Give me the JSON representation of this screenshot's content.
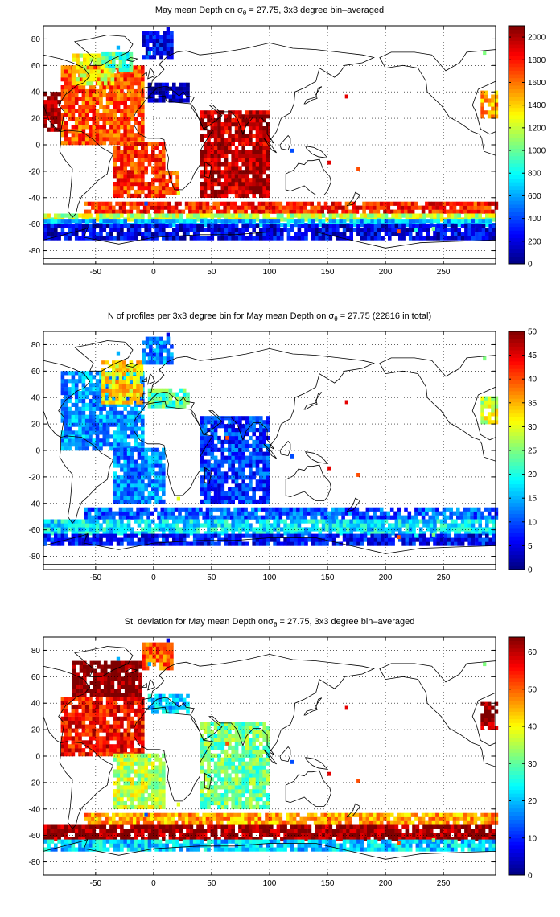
{
  "colors": {
    "land_outline": "#000000",
    "gridline": "#000000",
    "colormap": "jet",
    "colormap_stops": [
      "#00007f",
      "#0000ff",
      "#007fff",
      "#00ffff",
      "#7fff7f",
      "#ffff00",
      "#ff7f00",
      "#ff0000",
      "#7f0000"
    ]
  },
  "chart_data": [
    {
      "type": "heatmap",
      "title_parts": {
        "before": "May mean Depth on ",
        "symbol": "σ",
        "sub": "θ",
        "after": " = 27.75, 3x3 degree bin–averaged"
      },
      "xlim": [
        -95,
        295
      ],
      "ylim": [
        -90,
        90
      ],
      "xticks": [
        -50,
        0,
        50,
        100,
        150,
        200,
        250
      ],
      "yticks": [
        -80,
        -60,
        -40,
        -20,
        0,
        20,
        40,
        60,
        80
      ],
      "xtick_labels": [
        "-50",
        "0",
        "50",
        "100",
        "150",
        "200",
        "250"
      ],
      "ytick_labels": [
        "-80",
        "-60",
        "-40",
        "-20",
        "0",
        "20",
        "40",
        "60",
        "80"
      ],
      "grid": "dotted",
      "colorbar": {
        "min": 0,
        "max": 2100,
        "ticks": [
          0,
          200,
          400,
          600,
          800,
          1000,
          1200,
          1400,
          1600,
          1800,
          2000
        ],
        "tick_labels": [
          "0",
          "200",
          "400",
          "600",
          "800",
          "1000",
          "1200",
          "1400",
          "1600",
          "1800",
          "2000"
        ]
      },
      "regions": [
        {
          "lon": [
            -80,
            -10
          ],
          "lat": [
            0,
            60
          ],
          "value": 1650
        },
        {
          "lon": [
            -70,
            -35
          ],
          "lat": [
            45,
            68
          ],
          "value": 1250
        },
        {
          "lon": [
            -45,
            -20
          ],
          "lat": [
            55,
            68
          ],
          "value": 900
        },
        {
          "lon": [
            -10,
            15
          ],
          "lat": [
            65,
            85
          ],
          "value": 200
        },
        {
          "lon": [
            -5,
            30
          ],
          "lat": [
            32,
            45
          ],
          "value": 60
        },
        {
          "lon": [
            -35,
            10
          ],
          "lat": [
            -40,
            0
          ],
          "value": 1700
        },
        {
          "lon": [
            10,
            20
          ],
          "lat": [
            -38,
            -20
          ],
          "value": 1600
        },
        {
          "lon": [
            40,
            100
          ],
          "lat": [
            -40,
            25
          ],
          "value": 1950
        },
        {
          "lon": [
            -60,
            295
          ],
          "lat": [
            -52,
            -44
          ],
          "value": 1750
        },
        {
          "lon": [
            -95,
            295
          ],
          "lat": [
            -58,
            -52
          ],
          "value": 1150
        },
        {
          "lon": [
            -95,
            295
          ],
          "lat": [
            -62,
            -58
          ],
          "value": 600
        },
        {
          "lon": [
            -95,
            295
          ],
          "lat": [
            -72,
            -62
          ],
          "value": 180
        },
        {
          "lon": [
            -95,
            -82
          ],
          "lat": [
            10,
            40
          ],
          "value": 2000
        },
        {
          "lon": [
            282,
            295
          ],
          "lat": [
            20,
            40
          ],
          "value": 1500
        }
      ]
    },
    {
      "type": "heatmap",
      "title_parts": {
        "before": "N of profiles per 3x3 degree bin for May mean Depth on ",
        "symbol": "σ",
        "sub": "θ",
        "after": " = 27.75 (22816 in total)"
      },
      "xlim": [
        -95,
        295
      ],
      "ylim": [
        -90,
        90
      ],
      "xticks": [
        -50,
        0,
        50,
        100,
        150,
        200,
        250
      ],
      "yticks": [
        -80,
        -60,
        -40,
        -20,
        0,
        20,
        40,
        60,
        80
      ],
      "xtick_labels": [
        "-50",
        "0",
        "50",
        "100",
        "150",
        "200",
        "250"
      ],
      "ytick_labels": [
        "-80",
        "-60",
        "-40",
        "-20",
        "0",
        "20",
        "40",
        "60",
        "80"
      ],
      "grid": "dotted",
      "colorbar": {
        "min": 0,
        "max": 50,
        "ticks": [
          0,
          5,
          10,
          15,
          20,
          25,
          30,
          35,
          40,
          45,
          50
        ],
        "tick_labels": [
          "0",
          "5",
          "10",
          "15",
          "20",
          "25",
          "30",
          "35",
          "40",
          "45",
          "50"
        ]
      },
      "regions": [
        {
          "lon": [
            -80,
            -10
          ],
          "lat": [
            0,
            60
          ],
          "value": 13
        },
        {
          "lon": [
            -45,
            -10
          ],
          "lat": [
            35,
            68
          ],
          "value": 32
        },
        {
          "lon": [
            -10,
            15
          ],
          "lat": [
            65,
            85
          ],
          "value": 12
        },
        {
          "lon": [
            -5,
            30
          ],
          "lat": [
            32,
            45
          ],
          "value": 22
        },
        {
          "lon": [
            -35,
            10
          ],
          "lat": [
            -40,
            0
          ],
          "value": 12
        },
        {
          "lon": [
            40,
            100
          ],
          "lat": [
            -40,
            25
          ],
          "value": 8
        },
        {
          "lon": [
            -60,
            295
          ],
          "lat": [
            -52,
            -44
          ],
          "value": 10
        },
        {
          "lon": [
            -95,
            295
          ],
          "lat": [
            -64,
            -52
          ],
          "value": 17
        },
        {
          "lon": [
            -95,
            295
          ],
          "lat": [
            -72,
            -64
          ],
          "value": 6
        },
        {
          "lon": [
            282,
            295
          ],
          "lat": [
            20,
            40
          ],
          "value": 28
        }
      ]
    },
    {
      "type": "heatmap",
      "title_parts": {
        "before": "St. deviation for May mean Depth on",
        "symbol": "σ",
        "sub": "θ",
        "after": " = 27.75, 3x3 degree bin–averaged"
      },
      "xlim": [
        -95,
        295
      ],
      "ylim": [
        -90,
        90
      ],
      "xticks": [
        -50,
        0,
        50,
        100,
        150,
        200,
        250
      ],
      "yticks": [
        -80,
        -60,
        -40,
        -20,
        0,
        20,
        40,
        60,
        80
      ],
      "xtick_labels": [
        "-50",
        "0",
        "50",
        "100",
        "150",
        "200",
        "250"
      ],
      "ytick_labels": [
        "-80",
        "-60",
        "-40",
        "-20",
        "0",
        "20",
        "40",
        "60",
        "80"
      ],
      "grid": "dotted",
      "colorbar": {
        "min": 0,
        "max": 64,
        "ticks": [
          0,
          10,
          20,
          30,
          40,
          50,
          60
        ],
        "tick_labels": [
          "0",
          "10",
          "20",
          "30",
          "40",
          "50",
          "60"
        ]
      },
      "regions": [
        {
          "lon": [
            -80,
            -10
          ],
          "lat": [
            0,
            45
          ],
          "value": 55
        },
        {
          "lon": [
            -70,
            -10
          ],
          "lat": [
            45,
            70
          ],
          "value": 64
        },
        {
          "lon": [
            -10,
            15
          ],
          "lat": [
            65,
            85
          ],
          "value": 50
        },
        {
          "lon": [
            -5,
            30
          ],
          "lat": [
            32,
            45
          ],
          "value": 20
        },
        {
          "lon": [
            -35,
            10
          ],
          "lat": [
            -40,
            0
          ],
          "value": 35
        },
        {
          "lon": [
            40,
            100
          ],
          "lat": [
            -40,
            25
          ],
          "value": 30
        },
        {
          "lon": [
            -60,
            295
          ],
          "lat": [
            -52,
            -44
          ],
          "value": 45
        },
        {
          "lon": [
            -95,
            295
          ],
          "lat": [
            -64,
            -52
          ],
          "value": 62
        },
        {
          "lon": [
            -95,
            295
          ],
          "lat": [
            -72,
            -64
          ],
          "value": 20
        },
        {
          "lon": [
            282,
            295
          ],
          "lat": [
            20,
            40
          ],
          "value": 62
        }
      ]
    }
  ]
}
